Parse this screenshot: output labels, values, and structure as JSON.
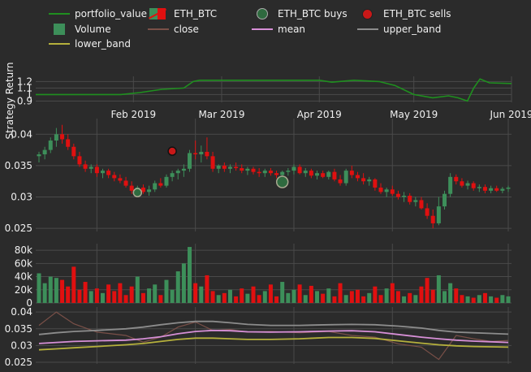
{
  "legend": {
    "portfolio_value": "portfolio_value",
    "eth_btc": "ETH_BTC",
    "buys": "ETH_BTC buys",
    "sells": "ETH_BTC sells",
    "volume": "Volume",
    "close": "close",
    "mean": "mean",
    "upper_band": "upper_band",
    "lower_band": "lower_band"
  },
  "colors": {
    "background": "#2b2b2b",
    "grid": "#4a4a4a",
    "portfolio": "#1f8f1f",
    "up": "#3d8f5a",
    "down": "#e01010",
    "buy": "#2f6a3f",
    "sell": "#c81818",
    "close": "#7a5048",
    "mean": "#d68fd6",
    "upper_band": "#8c8c8c",
    "lower_band": "#b5b03c",
    "text": "#f0f0f0"
  },
  "chart_data": [
    {
      "type": "line",
      "name": "strategy_return",
      "ylabel": "Strategy Return",
      "y_ticks": [
        "0.9",
        "1",
        "1.1",
        "1.2"
      ],
      "x_ticks": [
        "Feb 2019",
        "Mar 2019",
        "Apr 2019",
        "May 2019",
        "Jun 2019"
      ],
      "x": [
        "2019-01-01",
        "2019-01-28",
        "2019-02-03",
        "2019-02-10",
        "2019-02-17",
        "2019-02-20",
        "2019-02-22",
        "2019-03-01",
        "2019-03-15",
        "2019-04-01",
        "2019-04-05",
        "2019-04-12",
        "2019-04-20",
        "2019-04-25",
        "2019-05-01",
        "2019-05-07",
        "2019-05-12",
        "2019-05-15",
        "2019-05-18",
        "2019-05-20",
        "2019-05-22",
        "2019-05-25",
        "2019-06-01"
      ],
      "series": [
        {
          "name": "portfolio_value",
          "values": [
            1.0,
            1.0,
            1.03,
            1.08,
            1.1,
            1.2,
            1.22,
            1.22,
            1.22,
            1.22,
            1.19,
            1.22,
            1.2,
            1.14,
            1.0,
            0.95,
            0.98,
            0.95,
            0.9,
            1.1,
            1.24,
            1.18,
            1.17
          ]
        }
      ],
      "ylim": [
        0.88,
        1.28
      ]
    },
    {
      "type": "candlestick",
      "name": "price",
      "y_ticks": [
        "0.025",
        "0.03",
        "0.035",
        "0.04"
      ],
      "ylim": [
        0.0245,
        0.0425
      ],
      "series": [
        {
          "name": "ETH_BTC",
          "ohlc": [
            [
              0.0365,
              0.0372,
              0.0355,
              0.0368
            ],
            [
              0.0368,
              0.038,
              0.036,
              0.0375
            ],
            [
              0.0375,
              0.0395,
              0.037,
              0.039
            ],
            [
              0.039,
              0.041,
              0.038,
              0.04
            ],
            [
              0.04,
              0.0415,
              0.0385,
              0.0392
            ],
            [
              0.0392,
              0.04,
              0.0375,
              0.038
            ],
            [
              0.038,
              0.0385,
              0.036,
              0.0365
            ],
            [
              0.0365,
              0.0372,
              0.0348,
              0.0352
            ],
            [
              0.0352,
              0.0358,
              0.034,
              0.0345
            ],
            [
              0.0345,
              0.0352,
              0.0338,
              0.0348
            ],
            [
              0.0348,
              0.0352,
              0.0332,
              0.0338
            ],
            [
              0.0338,
              0.0345,
              0.033,
              0.0342
            ],
            [
              0.0342,
              0.0345,
              0.033,
              0.0335
            ],
            [
              0.0335,
              0.034,
              0.0325,
              0.033
            ],
            [
              0.033,
              0.0336,
              0.0322,
              0.0326
            ],
            [
              0.0326,
              0.0332,
              0.0315,
              0.0318
            ],
            [
              0.0318,
              0.0325,
              0.0305,
              0.031
            ],
            [
              0.031,
              0.0318,
              0.0305,
              0.0315
            ],
            [
              0.0315,
              0.032,
              0.0305,
              0.0308
            ],
            [
              0.0308,
              0.0318,
              0.0302,
              0.0312
            ],
            [
              0.0312,
              0.0326,
              0.0308,
              0.0322
            ],
            [
              0.0322,
              0.033,
              0.0315,
              0.0318
            ],
            [
              0.0318,
              0.0336,
              0.0315,
              0.0332
            ],
            [
              0.0332,
              0.0342,
              0.0325,
              0.0338
            ],
            [
              0.0338,
              0.0345,
              0.0328,
              0.0342
            ],
            [
              0.0342,
              0.0352,
              0.0332,
              0.0345
            ],
            [
              0.0345,
              0.0375,
              0.034,
              0.037
            ],
            [
              0.037,
              0.039,
              0.036,
              0.0368
            ],
            [
              0.0368,
              0.0382,
              0.0355,
              0.0372
            ],
            [
              0.0372,
              0.0395,
              0.036,
              0.0365
            ],
            [
              0.0365,
              0.0372,
              0.034,
              0.0345
            ],
            [
              0.0345,
              0.0352,
              0.0338,
              0.035
            ],
            [
              0.035,
              0.0355,
              0.034,
              0.0345
            ],
            [
              0.0345,
              0.0352,
              0.0338,
              0.0348
            ],
            [
              0.0348,
              0.0355,
              0.0342,
              0.0346
            ],
            [
              0.0346,
              0.0352,
              0.0338,
              0.0342
            ],
            [
              0.0342,
              0.0348,
              0.0335,
              0.0345
            ],
            [
              0.0345,
              0.0348,
              0.0336,
              0.034
            ],
            [
              0.034,
              0.0346,
              0.0332,
              0.0338
            ],
            [
              0.0338,
              0.0345,
              0.0332,
              0.0342
            ],
            [
              0.0342,
              0.0346,
              0.0334,
              0.0338
            ],
            [
              0.0338,
              0.0342,
              0.033,
              0.0335
            ],
            [
              0.0335,
              0.0342,
              0.033,
              0.034
            ],
            [
              0.034,
              0.0346,
              0.0334,
              0.0342
            ],
            [
              0.0342,
              0.0352,
              0.0336,
              0.0348
            ],
            [
              0.0348,
              0.0352,
              0.0336,
              0.0338
            ],
            [
              0.0338,
              0.0346,
              0.0332,
              0.0342
            ],
            [
              0.0342,
              0.0345,
              0.033,
              0.0334
            ],
            [
              0.0334,
              0.0342,
              0.0328,
              0.0338
            ],
            [
              0.0338,
              0.0342,
              0.033,
              0.0332
            ],
            [
              0.0332,
              0.0342,
              0.0328,
              0.034
            ],
            [
              0.034,
              0.0345,
              0.0325,
              0.0328
            ],
            [
              0.0328,
              0.0335,
              0.0318,
              0.0322
            ],
            [
              0.0322,
              0.0345,
              0.0318,
              0.0342
            ],
            [
              0.0342,
              0.035,
              0.033,
              0.0335
            ],
            [
              0.0335,
              0.034,
              0.0325,
              0.033
            ],
            [
              0.033,
              0.0338,
              0.032,
              0.0325
            ],
            [
              0.0325,
              0.0332,
              0.0318,
              0.0328
            ],
            [
              0.0328,
              0.033,
              0.031,
              0.0315
            ],
            [
              0.0315,
              0.0322,
              0.0305,
              0.0308
            ],
            [
              0.0308,
              0.0315,
              0.03,
              0.0312
            ],
            [
              0.0312,
              0.0318,
              0.0302,
              0.0305
            ],
            [
              0.0305,
              0.031,
              0.0296,
              0.03
            ],
            [
              0.03,
              0.0308,
              0.0292,
              0.0302
            ],
            [
              0.0302,
              0.0306,
              0.0288,
              0.0292
            ],
            [
              0.0292,
              0.03,
              0.0285,
              0.0295
            ],
            [
              0.0295,
              0.03,
              0.028,
              0.0282
            ],
            [
              0.0282,
              0.029,
              0.0265,
              0.027
            ],
            [
              0.027,
              0.028,
              0.025,
              0.0258
            ],
            [
              0.0258,
              0.03,
              0.0255,
              0.0285
            ],
            [
              0.0285,
              0.031,
              0.028,
              0.0305
            ],
            [
              0.0305,
              0.0338,
              0.03,
              0.0332
            ],
            [
              0.0332,
              0.0336,
              0.032,
              0.0325
            ],
            [
              0.0325,
              0.033,
              0.0315,
              0.0318
            ],
            [
              0.0318,
              0.0326,
              0.0312,
              0.0322
            ],
            [
              0.0322,
              0.0325,
              0.031,
              0.0314
            ],
            [
              0.0314,
              0.032,
              0.0308,
              0.0316
            ],
            [
              0.0316,
              0.032,
              0.0306,
              0.031
            ],
            [
              0.031,
              0.0318,
              0.0306,
              0.0314
            ],
            [
              0.0314,
              0.0318,
              0.0308,
              0.031
            ],
            [
              0.031,
              0.0316,
              0.0306,
              0.0313
            ],
            [
              0.0313,
              0.0318,
              0.0308,
              0.0315
            ]
          ]
        },
        {
          "name": "ETH_BTC buys",
          "points": [
            [
              17,
              0.0307
            ],
            [
              42,
              0.0324
            ]
          ]
        },
        {
          "name": "ETH_BTC sells",
          "points": [
            [
              23,
              0.0373
            ]
          ]
        }
      ]
    },
    {
      "type": "bar",
      "name": "volume",
      "y_ticks": [
        "0",
        "20k",
        "40k",
        "60k",
        "80k"
      ],
      "ylim": [
        0,
        90000
      ],
      "series": [
        {
          "name": "Volume",
          "values": [
            45000,
            30000,
            40000,
            38000,
            35000,
            25000,
            55000,
            20000,
            32000,
            18000,
            22000,
            15000,
            28000,
            18000,
            30000,
            12000,
            25000,
            40000,
            15000,
            22000,
            28000,
            12000,
            35000,
            20000,
            48000,
            60000,
            85000,
            30000,
            25000,
            42000,
            18000,
            12000,
            15000,
            20000,
            10000,
            22000,
            14000,
            25000,
            12000,
            18000,
            28000,
            10000,
            32000,
            15000,
            20000,
            28000,
            12000,
            26000,
            18000,
            14000,
            22000,
            10000,
            30000,
            12000,
            18000,
            20000,
            10000,
            15000,
            25000,
            12000,
            22000,
            30000,
            18000,
            10000,
            15000,
            12000,
            25000,
            38000,
            20000,
            42000,
            18000,
            30000,
            22000,
            12000,
            10000,
            8000,
            12000,
            15000,
            10000,
            8000,
            12000,
            10000
          ]
        }
      ]
    },
    {
      "type": "line",
      "name": "bollinger",
      "y_ticks": [
        "0.025",
        "0.03",
        "0.035",
        "0.04"
      ],
      "ylim": [
        0.0245,
        0.0415
      ],
      "x": [
        0,
        3,
        6,
        10,
        15,
        18,
        21,
        24,
        27,
        30,
        33,
        36,
        40,
        45,
        50,
        54,
        58,
        62,
        66,
        69,
        72,
        75,
        78,
        81
      ],
      "series": [
        {
          "name": "close",
          "values": [
            0.036,
            0.04,
            0.0365,
            0.034,
            0.033,
            0.031,
            0.0325,
            0.0355,
            0.037,
            0.0345,
            0.0348,
            0.034,
            0.0342,
            0.0338,
            0.0342,
            0.033,
            0.0325,
            0.0305,
            0.0295,
            0.0258,
            0.033,
            0.032,
            0.0312,
            0.0315
          ]
        },
        {
          "name": "mean",
          "values": [
            0.0306,
            0.0309,
            0.0312,
            0.0314,
            0.0316,
            0.032,
            0.0326,
            0.0335,
            0.0342,
            0.0345,
            0.0344,
            0.0341,
            0.034,
            0.0341,
            0.0343,
            0.0344,
            0.0341,
            0.0333,
            0.0325,
            0.032,
            0.0316,
            0.0313,
            0.0311,
            0.0309
          ]
        },
        {
          "name": "upper_band",
          "values": [
            0.0333,
            0.0338,
            0.0342,
            0.0345,
            0.035,
            0.0355,
            0.0362,
            0.0368,
            0.0372,
            0.0372,
            0.0368,
            0.0363,
            0.036,
            0.036,
            0.0362,
            0.0363,
            0.0362,
            0.0358,
            0.0352,
            0.0345,
            0.034,
            0.0338,
            0.0336,
            0.0334
          ]
        },
        {
          "name": "lower_band",
          "values": [
            0.0287,
            0.029,
            0.0293,
            0.0297,
            0.0302,
            0.0306,
            0.0312,
            0.0318,
            0.0322,
            0.0322,
            0.032,
            0.0318,
            0.0318,
            0.032,
            0.0324,
            0.0324,
            0.0321,
            0.0314,
            0.0307,
            0.0302,
            0.0299,
            0.0297,
            0.0296,
            0.0295
          ]
        }
      ]
    }
  ]
}
